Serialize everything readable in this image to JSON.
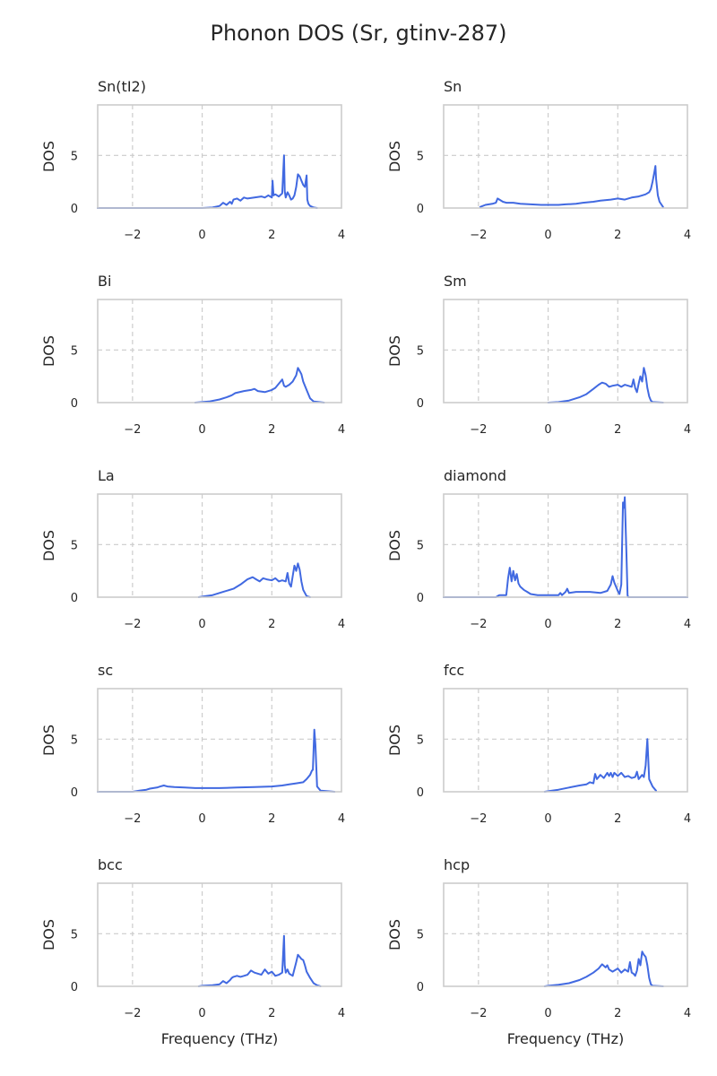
{
  "chart_data": {
    "type": "line",
    "title": "Phonon DOS (Sr, gtinv-287)",
    "xlabel": "Frequency (THz)",
    "ylabel": "DOS",
    "xlim": [
      -3,
      4
    ],
    "ylim": [
      0,
      9.8
    ],
    "xticks": [
      -2,
      0,
      2,
      4
    ],
    "yticks": [
      0,
      5
    ],
    "grid": true,
    "line_color": "#4169e1",
    "panels": [
      {
        "title": "Sn(tI2)",
        "x": [
          -3,
          0,
          0.3,
          0.5,
          0.6,
          0.7,
          0.8,
          0.85,
          0.9,
          1.0,
          1.1,
          1.2,
          1.3,
          1.5,
          1.7,
          1.8,
          1.9,
          2.0,
          2.02,
          2.05,
          2.1,
          2.2,
          2.3,
          2.35,
          2.37,
          2.4,
          2.45,
          2.5,
          2.55,
          2.6,
          2.65,
          2.7,
          2.75,
          2.8,
          2.85,
          2.9,
          2.95,
          3.0,
          3.02,
          3.05,
          3.1,
          3.2,
          3.3
        ],
        "y": [
          0,
          0,
          0.05,
          0.2,
          0.5,
          0.3,
          0.6,
          0.4,
          0.8,
          0.9,
          0.7,
          1.0,
          0.9,
          1.0,
          1.1,
          1.0,
          1.2,
          1.0,
          2.6,
          1.2,
          1.3,
          1.1,
          1.4,
          5.0,
          1.6,
          1.0,
          1.5,
          1.2,
          0.8,
          0.9,
          1.2,
          2.0,
          3.2,
          3.0,
          2.6,
          2.2,
          2.0,
          3.1,
          0.8,
          0.4,
          0.2,
          0.05,
          0
        ]
      },
      {
        "title": "Sn",
        "x": [
          -1.95,
          -1.8,
          -1.6,
          -1.5,
          -1.45,
          -1.3,
          -1.2,
          -1.0,
          -0.8,
          -0.5,
          -0.2,
          0.0,
          0.3,
          0.5,
          0.8,
          1.0,
          1.3,
          1.5,
          1.8,
          2.0,
          2.2,
          2.4,
          2.6,
          2.7,
          2.8,
          2.9,
          2.95,
          3.0,
          3.05,
          3.08,
          3.1,
          3.15,
          3.2,
          3.3
        ],
        "y": [
          0.1,
          0.3,
          0.4,
          0.5,
          0.9,
          0.6,
          0.5,
          0.5,
          0.4,
          0.35,
          0.3,
          0.3,
          0.3,
          0.35,
          0.4,
          0.5,
          0.6,
          0.7,
          0.8,
          0.9,
          0.8,
          1.0,
          1.1,
          1.2,
          1.3,
          1.5,
          1.8,
          2.5,
          3.4,
          4.0,
          2.8,
          1.2,
          0.6,
          0.1
        ]
      },
      {
        "title": "Bi",
        "x": [
          -0.2,
          0.0,
          0.2,
          0.5,
          0.7,
          0.85,
          0.95,
          1.2,
          1.4,
          1.5,
          1.6,
          1.8,
          2.0,
          2.1,
          2.2,
          2.3,
          2.35,
          2.4,
          2.5,
          2.6,
          2.7,
          2.75,
          2.8,
          2.85,
          2.9,
          3.0,
          3.1,
          3.2,
          3.5
        ],
        "y": [
          0,
          0.05,
          0.1,
          0.3,
          0.5,
          0.7,
          0.9,
          1.1,
          1.2,
          1.3,
          1.1,
          1.0,
          1.2,
          1.4,
          1.8,
          2.2,
          1.6,
          1.5,
          1.7,
          2.0,
          2.6,
          3.3,
          3.0,
          2.7,
          2.0,
          1.2,
          0.4,
          0.1,
          0
        ]
      },
      {
        "title": "Sm",
        "x": [
          0.0,
          0.3,
          0.6,
          0.9,
          1.1,
          1.3,
          1.45,
          1.55,
          1.65,
          1.75,
          1.85,
          2.0,
          2.1,
          2.2,
          2.3,
          2.4,
          2.45,
          2.5,
          2.55,
          2.6,
          2.65,
          2.7,
          2.75,
          2.8,
          2.85,
          2.9,
          2.95,
          3.0,
          3.3
        ],
        "y": [
          0,
          0.05,
          0.2,
          0.5,
          0.8,
          1.3,
          1.7,
          1.9,
          1.8,
          1.5,
          1.6,
          1.7,
          1.5,
          1.7,
          1.6,
          1.5,
          2.2,
          1.4,
          1.0,
          1.8,
          2.5,
          2.0,
          3.3,
          2.6,
          1.4,
          0.6,
          0.2,
          0.05,
          0
        ]
      },
      {
        "title": "La",
        "x": [
          -0.1,
          0.0,
          0.3,
          0.6,
          0.9,
          1.1,
          1.3,
          1.45,
          1.55,
          1.65,
          1.75,
          1.85,
          2.0,
          2.1,
          2.2,
          2.3,
          2.4,
          2.45,
          2.5,
          2.55,
          2.6,
          2.65,
          2.7,
          2.75,
          2.8,
          2.85,
          2.9,
          3.0,
          3.1
        ],
        "y": [
          0,
          0.05,
          0.2,
          0.5,
          0.8,
          1.2,
          1.7,
          1.9,
          1.7,
          1.5,
          1.8,
          1.7,
          1.6,
          1.8,
          1.5,
          1.6,
          1.5,
          2.3,
          1.3,
          1.0,
          2.0,
          3.0,
          2.5,
          3.2,
          2.6,
          1.5,
          0.7,
          0.1,
          0
        ]
      },
      {
        "title": "diamond",
        "x": [
          -3,
          -1.5,
          -1.45,
          -1.4,
          -1.2,
          -1.15,
          -1.1,
          -1.05,
          -1.0,
          -0.95,
          -0.9,
          -0.85,
          -0.8,
          -0.7,
          -0.6,
          -0.5,
          -0.3,
          0.0,
          0.3,
          0.35,
          0.4,
          0.5,
          0.55,
          0.6,
          0.8,
          1.0,
          1.2,
          1.5,
          1.7,
          1.8,
          1.85,
          1.9,
          2.0,
          2.05,
          2.1,
          2.15,
          2.18,
          2.2,
          2.25,
          2.28,
          2.3,
          4
        ],
        "y": [
          0,
          0,
          0.1,
          0.2,
          0.2,
          1.8,
          2.8,
          1.5,
          2.5,
          1.6,
          2.2,
          1.3,
          1.0,
          0.7,
          0.5,
          0.3,
          0.2,
          0.2,
          0.2,
          0.4,
          0.2,
          0.5,
          0.8,
          0.4,
          0.5,
          0.5,
          0.5,
          0.4,
          0.6,
          1.2,
          2.0,
          1.4,
          0.6,
          0.3,
          1.2,
          9.0,
          8.5,
          9.5,
          4.0,
          0.2,
          0,
          0
        ]
      },
      {
        "title": "sc",
        "x": [
          -3,
          -2.5,
          -2.0,
          -1.8,
          -1.6,
          -1.5,
          -1.3,
          -1.2,
          -1.1,
          -1.0,
          -0.8,
          -0.5,
          -0.2,
          0.0,
          0.5,
          1.0,
          1.5,
          2.0,
          2.3,
          2.5,
          2.7,
          2.9,
          3.0,
          3.1,
          3.15,
          3.18,
          3.22,
          3.25,
          3.3,
          3.4,
          3.6,
          3.8
        ],
        "y": [
          0,
          0,
          0,
          0.1,
          0.2,
          0.3,
          0.4,
          0.5,
          0.6,
          0.5,
          0.45,
          0.4,
          0.35,
          0.35,
          0.35,
          0.4,
          0.45,
          0.5,
          0.6,
          0.7,
          0.8,
          0.9,
          1.2,
          1.6,
          2.0,
          2.1,
          5.9,
          4.5,
          0.5,
          0.1,
          0.05,
          0
        ]
      },
      {
        "title": "fcc",
        "x": [
          -0.1,
          0.0,
          0.3,
          0.6,
          0.9,
          1.1,
          1.2,
          1.3,
          1.35,
          1.4,
          1.5,
          1.6,
          1.7,
          1.75,
          1.8,
          1.85,
          1.9,
          2.0,
          2.1,
          2.2,
          2.3,
          2.4,
          2.5,
          2.55,
          2.6,
          2.7,
          2.75,
          2.8,
          2.85,
          2.9,
          3.0,
          3.1
        ],
        "y": [
          0,
          0.05,
          0.2,
          0.4,
          0.6,
          0.7,
          0.9,
          0.8,
          1.7,
          1.2,
          1.6,
          1.3,
          1.8,
          1.5,
          1.8,
          1.4,
          1.8,
          1.5,
          1.8,
          1.4,
          1.5,
          1.3,
          1.4,
          1.9,
          1.2,
          1.6,
          1.4,
          2.5,
          5.0,
          1.2,
          0.5,
          0.1
        ]
      },
      {
        "title": "bcc",
        "x": [
          -0.1,
          0.0,
          0.3,
          0.5,
          0.6,
          0.7,
          0.8,
          0.85,
          0.9,
          1.0,
          1.1,
          1.2,
          1.3,
          1.4,
          1.5,
          1.7,
          1.8,
          1.9,
          2.0,
          2.05,
          2.1,
          2.2,
          2.3,
          2.35,
          2.37,
          2.4,
          2.45,
          2.5,
          2.6,
          2.7,
          2.75,
          2.8,
          2.85,
          2.9,
          2.95,
          3.0,
          3.1,
          3.2,
          3.3,
          3.4
        ],
        "y": [
          0,
          0.05,
          0.1,
          0.2,
          0.5,
          0.3,
          0.6,
          0.8,
          0.9,
          1.0,
          0.9,
          1.0,
          1.1,
          1.5,
          1.3,
          1.1,
          1.6,
          1.2,
          1.4,
          1.2,
          1.0,
          1.1,
          1.3,
          4.8,
          2.0,
          1.3,
          1.6,
          1.2,
          1.0,
          2.3,
          3.0,
          2.8,
          2.6,
          2.5,
          2.0,
          1.4,
          0.8,
          0.3,
          0.1,
          0
        ]
      },
      {
        "title": "hcp",
        "x": [
          -0.1,
          0.0,
          0.3,
          0.6,
          0.9,
          1.1,
          1.3,
          1.45,
          1.55,
          1.65,
          1.7,
          1.75,
          1.85,
          2.0,
          2.1,
          2.2,
          2.3,
          2.35,
          2.4,
          2.45,
          2.5,
          2.55,
          2.6,
          2.65,
          2.7,
          2.75,
          2.8,
          2.85,
          2.9,
          2.95,
          3.0,
          3.3
        ],
        "y": [
          0,
          0.05,
          0.15,
          0.3,
          0.6,
          0.9,
          1.3,
          1.7,
          2.1,
          1.8,
          2.0,
          1.6,
          1.4,
          1.7,
          1.3,
          1.6,
          1.4,
          2.3,
          1.3,
          1.2,
          1.0,
          1.5,
          2.6,
          2.0,
          3.3,
          3.0,
          2.8,
          2.0,
          0.8,
          0.2,
          0.05,
          0
        ]
      }
    ]
  }
}
